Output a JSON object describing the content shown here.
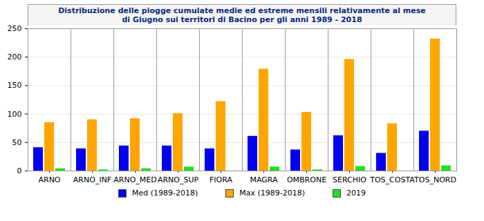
{
  "chart_data": {
    "type": "bar",
    "title": "Distribuzione delle piogge cumulate medie ed estreme mensili relativamente al mese di Giugno sui territori di Bacino per gli anni 1989 - 2018",
    "categories": [
      "ARNO",
      "ARNO_INF",
      "ARNO_MED",
      "ARNO_SUP",
      "FIORA",
      "MAGRA",
      "OMBRONE",
      "SERCHIO",
      "TOS_COSTA",
      "TOS_NORD"
    ],
    "series": [
      {
        "name": "Med (1989-2018)",
        "color": "#0000ee",
        "values": [
          41,
          39,
          44,
          44,
          39,
          61,
          37,
          62,
          31,
          70
        ]
      },
      {
        "name": "Max (1989-2018)",
        "color": "#ffa500",
        "values": [
          85,
          90,
          92,
          101,
          122,
          179,
          103,
          196,
          83,
          232
        ]
      },
      {
        "name": "2019",
        "color": "#22e022",
        "values": [
          4,
          2,
          4,
          7,
          0,
          7,
          2,
          8,
          0,
          9
        ]
      }
    ],
    "ylim": [
      0,
      250
    ],
    "yticks": [
      0,
      50,
      100,
      150,
      200,
      250
    ],
    "grid": true,
    "legend": "bottom"
  }
}
